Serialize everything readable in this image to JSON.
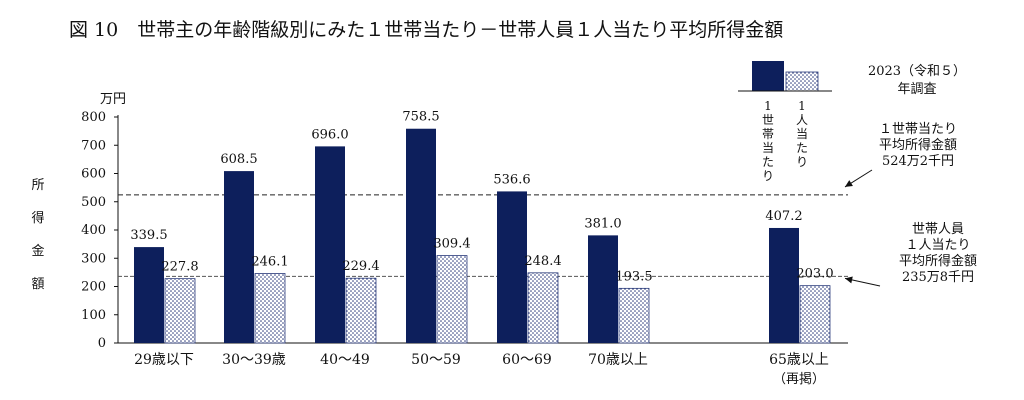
{
  "chart_data": {
    "type": "bar",
    "title": "図 10　世帯主の年齢階級別にみた１世帯当たり－世帯人員１人当たり平均所得金額",
    "survey_label": [
      "2023（令和５）",
      "年調査"
    ],
    "ylabel": [
      "所",
      "得",
      "金",
      "額"
    ],
    "unit": "万円",
    "ylim": [
      0,
      800
    ],
    "yticks": [
      0,
      100,
      200,
      300,
      400,
      500,
      600,
      700,
      800
    ],
    "categories": [
      "29歳以下",
      "30～39歳",
      "40～49",
      "50～59",
      "60～69",
      "70歳以上",
      "65歳以上"
    ],
    "category_sublabels": [
      "",
      "",
      "",
      "",
      "",
      "",
      "（再掲）"
    ],
    "series": [
      {
        "name": "１世帯当たり",
        "values": [
          339.5,
          608.5,
          696.0,
          758.5,
          536.6,
          381.0,
          407.2
        ],
        "labels": [
          "339.5",
          "608.5",
          "696.0",
          "758.5",
          "536.6",
          "381.0",
          "407.2"
        ]
      },
      {
        "name": "１人当たり",
        "values": [
          227.8,
          246.1,
          229.4,
          309.4,
          248.4,
          193.5,
          203.0
        ],
        "labels": [
          "227.8",
          "246.1",
          "229.4",
          "309.4",
          "248.4",
          "193.5",
          "203.0"
        ]
      }
    ],
    "legend": [
      {
        "chars": [
          "1",
          "世",
          "帯",
          "当",
          "た",
          "り"
        ]
      },
      {
        "chars": [
          "1",
          "人",
          "当",
          "た",
          "り"
        ]
      }
    ],
    "reference_lines": [
      {
        "value": 524.2,
        "label_lines": [
          "１世帯当たり",
          "平均所得金額",
          "524万2千円"
        ]
      },
      {
        "value": 235.8,
        "label_lines": [
          "世帯人員",
          "１人当たり",
          "平均所得金額",
          "235万8千円"
        ]
      }
    ],
    "colors": {
      "household": "#0d1f5c",
      "per_person_pattern": "#2a3a7a",
      "axis": "#111111"
    },
    "grid": false
  }
}
